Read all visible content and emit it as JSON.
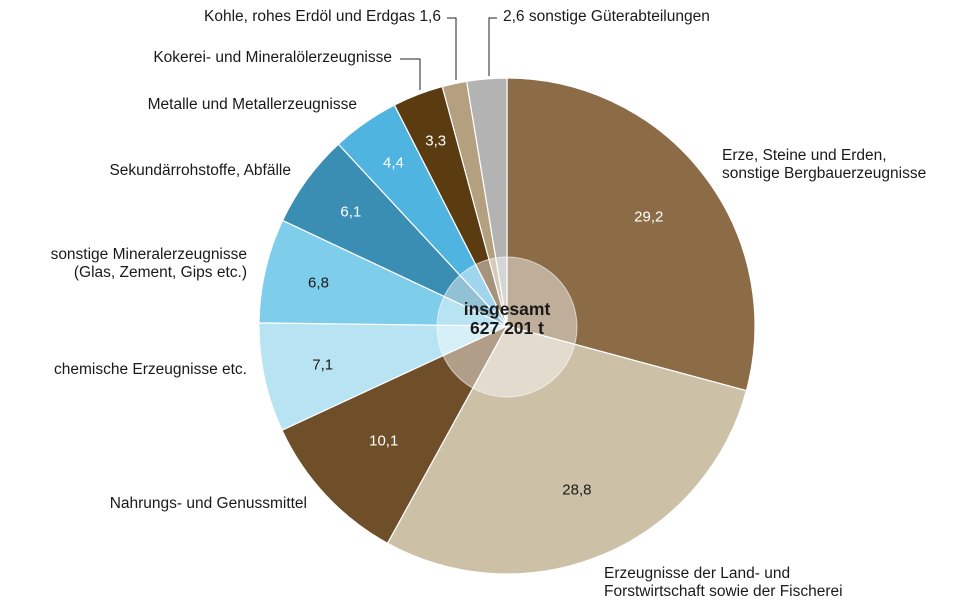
{
  "chart_data": {
    "type": "pie",
    "categories": [
      "Erze, Steine und Erden,\nsonstige Bergbauerzeugnisse",
      "Erzeugnisse der Land- und\nForstwirtschaft sowie der Fischerei",
      "Nahrungs- und Genussmittel",
      "chemische Erzeugnisse etc.",
      "sonstige Mineralerzeugnisse\n(Glas, Zement, Gips etc.)",
      "Sekundärrohstoffe, Abfälle",
      "Metalle und Metallerzeugnisse",
      "Kokerei- und Mineralölerzeugnisse",
      "Kohle, rohes Erdöl und Erdgas",
      "sonstige Güterabteilungen"
    ],
    "values": [
      29.2,
      28.8,
      10.1,
      7.1,
      6.8,
      6.1,
      4.4,
      3.3,
      1.6,
      2.6
    ],
    "value_labels": [
      "29,2",
      "28,8",
      "10,1",
      "7,1",
      "6,8",
      "6,1",
      "4,4",
      "3,3",
      "1,6",
      "2,6"
    ],
    "colors": [
      "#8b6c46",
      "#ccc0a6",
      "#6f4f29",
      "#b7e3f3",
      "#7ecdea",
      "#3a8db3",
      "#50b4e0",
      "#5b3b10",
      "#b4a07f",
      "#b3b3b3"
    ],
    "center_label": "insgesamt\n627 201 t"
  }
}
